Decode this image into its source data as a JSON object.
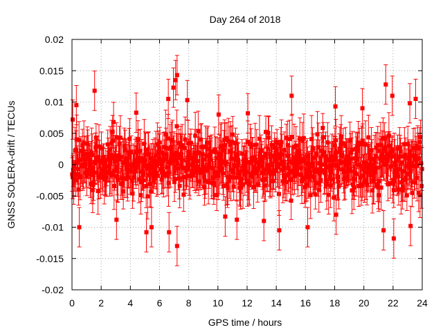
{
  "chart_data": {
    "type": "scatter",
    "title": "Day 264 of 2018",
    "xlabel": "GPS time / hours",
    "ylabel": "GNSS SOLERA-drift / TECUs",
    "xlim": [
      0,
      24
    ],
    "ylim": [
      -0.02,
      0.02
    ],
    "xticks": [
      "0",
      "2",
      "4",
      "6",
      "8",
      "10",
      "12",
      "14",
      "16",
      "18",
      "20",
      "22",
      "24"
    ],
    "yticks": [
      "0.02",
      "0.015",
      "0.01",
      "0.005",
      "0",
      "-0.005",
      "-0.01",
      "-0.015",
      "-0.02"
    ],
    "grid": true,
    "error_bars": true,
    "series": [
      {
        "color": "#ff0000",
        "marker": "square",
        "sampling_interval_hours": 0.0333,
        "approx_point_count": 720,
        "typical_range": [
          -0.007,
          0.007
        ],
        "typical_error_bar_halfwidth": 0.003,
        "highlighted_points": [
          {
            "x": 0.05,
            "y": 0.0072
          },
          {
            "x": 0.3,
            "y": 0.0095
          },
          {
            "x": 0.5,
            "y": -0.01
          },
          {
            "x": 1.55,
            "y": 0.0118
          },
          {
            "x": 2.85,
            "y": 0.0068
          },
          {
            "x": 3.05,
            "y": -0.0088
          },
          {
            "x": 4.4,
            "y": 0.0083
          },
          {
            "x": 5.1,
            "y": -0.0108
          },
          {
            "x": 5.45,
            "y": -0.01
          },
          {
            "x": 6.6,
            "y": 0.0105
          },
          {
            "x": 6.65,
            "y": -0.0108
          },
          {
            "x": 6.95,
            "y": 0.0123
          },
          {
            "x": 7.1,
            "y": 0.0135
          },
          {
            "x": 7.2,
            "y": 0.0143
          },
          {
            "x": 7.2,
            "y": -0.013
          },
          {
            "x": 7.9,
            "y": 0.0103
          },
          {
            "x": 10.05,
            "y": 0.008
          },
          {
            "x": 10.5,
            "y": -0.0083
          },
          {
            "x": 11.3,
            "y": -0.0088
          },
          {
            "x": 12.05,
            "y": 0.0082
          },
          {
            "x": 13.15,
            "y": -0.009
          },
          {
            "x": 14.2,
            "y": -0.0105
          },
          {
            "x": 15.05,
            "y": 0.011
          },
          {
            "x": 16.15,
            "y": -0.01
          },
          {
            "x": 18.05,
            "y": 0.0093
          },
          {
            "x": 18.1,
            "y": -0.008
          },
          {
            "x": 19.9,
            "y": 0.009
          },
          {
            "x": 21.35,
            "y": -0.0105
          },
          {
            "x": 21.5,
            "y": 0.0128
          },
          {
            "x": 21.95,
            "y": 0.011
          },
          {
            "x": 22.05,
            "y": -0.0118
          },
          {
            "x": 23.15,
            "y": 0.0098
          },
          {
            "x": 23.2,
            "y": -0.0098
          },
          {
            "x": 23.55,
            "y": 0.0105
          }
        ]
      }
    ]
  }
}
